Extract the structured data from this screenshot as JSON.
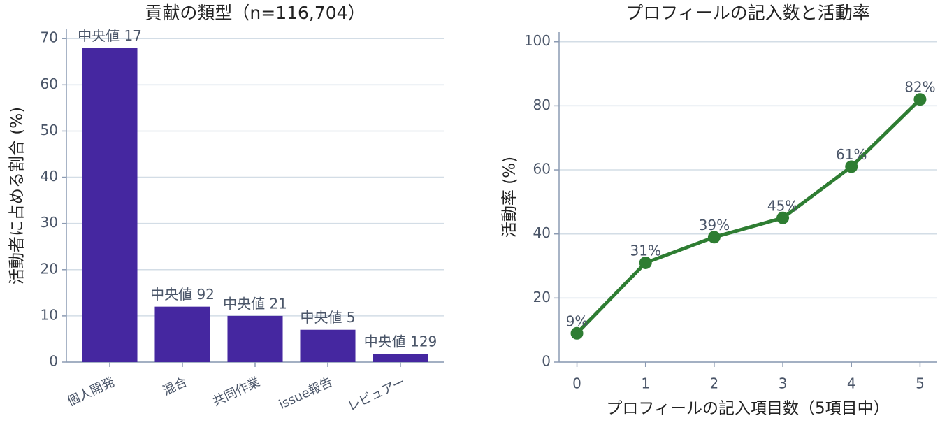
{
  "chart_data": [
    {
      "type": "bar",
      "title": "貢献の類型（n=116,704）",
      "y_label": "活動者に占める割合 (%)",
      "categories": [
        "個人開発",
        "混合",
        "共同作業",
        "issue報告",
        "レビュアー"
      ],
      "values": [
        68,
        12,
        10,
        7,
        1.8
      ],
      "bar_annotations": [
        "中央値 17",
        "中央値 92",
        "中央値 21",
        "中央値 5",
        "中央値 129"
      ],
      "color": "#4527a0",
      "ylim": [
        0,
        72
      ],
      "yticks": [
        0,
        10,
        20,
        30,
        40,
        50,
        60,
        70
      ],
      "grid": true
    },
    {
      "type": "line",
      "title": "プロフィールの記入数と活動率",
      "y_label": "活動率 (%)",
      "x_label": "プロフィールの記入項目数（5項目中）",
      "x": [
        0,
        1,
        2,
        3,
        4,
        5
      ],
      "values": [
        9,
        31,
        39,
        45,
        61,
        82
      ],
      "value_labels": [
        "9%",
        "31%",
        "39%",
        "45%",
        "61%",
        "82%"
      ],
      "color": "#2e7d32",
      "xlim": [
        -0.26,
        5.24
      ],
      "ylim": [
        0,
        103
      ],
      "xticks": [
        0,
        1,
        2,
        3,
        4,
        5
      ],
      "yticks": [
        0,
        20,
        40,
        60,
        80,
        100
      ],
      "grid": true
    }
  ]
}
